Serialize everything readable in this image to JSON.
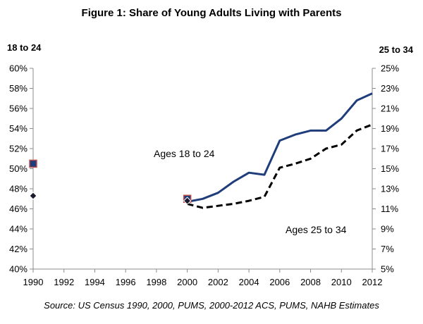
{
  "chart_data": {
    "type": "line",
    "title": "Figure 1: Share of Young Adults Living with Parents",
    "left_axis_title": "18 to 24",
    "right_axis_title": "25 to 34",
    "source": "Source: US Census 1990, 2000, PUMS, 2000-2012 ACS, PUMS, NAHB Estimates",
    "x_ticks": [
      1990,
      1992,
      1994,
      1996,
      1998,
      2000,
      2002,
      2004,
      2006,
      2008,
      2010,
      2012
    ],
    "xlim": [
      1990,
      2012
    ],
    "ylim_left": [
      40,
      60
    ],
    "ylim_right": [
      5,
      25
    ],
    "y_ticks_left": [
      "40%",
      "42%",
      "44%",
      "46%",
      "48%",
      "50%",
      "52%",
      "54%",
      "56%",
      "58%",
      "60%"
    ],
    "y_ticks_right": [
      "5%",
      "7%",
      "9%",
      "11%",
      "13%",
      "15%",
      "17%",
      "19%",
      "21%",
      "23%",
      "25%"
    ],
    "grid": false,
    "series": [
      {
        "name": "Ages 18 to 24",
        "axis": "left",
        "color": "#1f3d7a",
        "style": "solid",
        "line": {
          "x": [
            2000,
            2001,
            2002,
            2003,
            2004,
            2005,
            2006,
            2007,
            2008,
            2009,
            2010,
            2011,
            2012
          ],
          "y": [
            46.7,
            47.0,
            47.6,
            48.7,
            49.6,
            49.4,
            52.8,
            53.4,
            53.8,
            53.8,
            55.0,
            56.8,
            57.5
          ]
        },
        "markers": {
          "x": [
            1990,
            2000
          ],
          "y": [
            50.5,
            47.0
          ],
          "shape": "square",
          "fill": "#1f3d7a",
          "edge": "#c0504d"
        }
      },
      {
        "name": "Ages 25 to 34",
        "axis": "right",
        "color": "#000000",
        "style": "dashed",
        "line": {
          "x": [
            2000,
            2001,
            2002,
            2003,
            2004,
            2005,
            2006,
            2007,
            2008,
            2009,
            2010,
            2011,
            2012
          ],
          "y": [
            11.5,
            11.1,
            11.3,
            11.5,
            11.8,
            12.2,
            15.1,
            15.5,
            16.0,
            17.0,
            17.4,
            18.8,
            19.4
          ]
        },
        "markers": {
          "x": [
            1990,
            2000
          ],
          "y": [
            12.3,
            11.8
          ],
          "shape": "diamond",
          "fill": "#1a1a2e",
          "edge": "#ffffff"
        }
      }
    ]
  }
}
